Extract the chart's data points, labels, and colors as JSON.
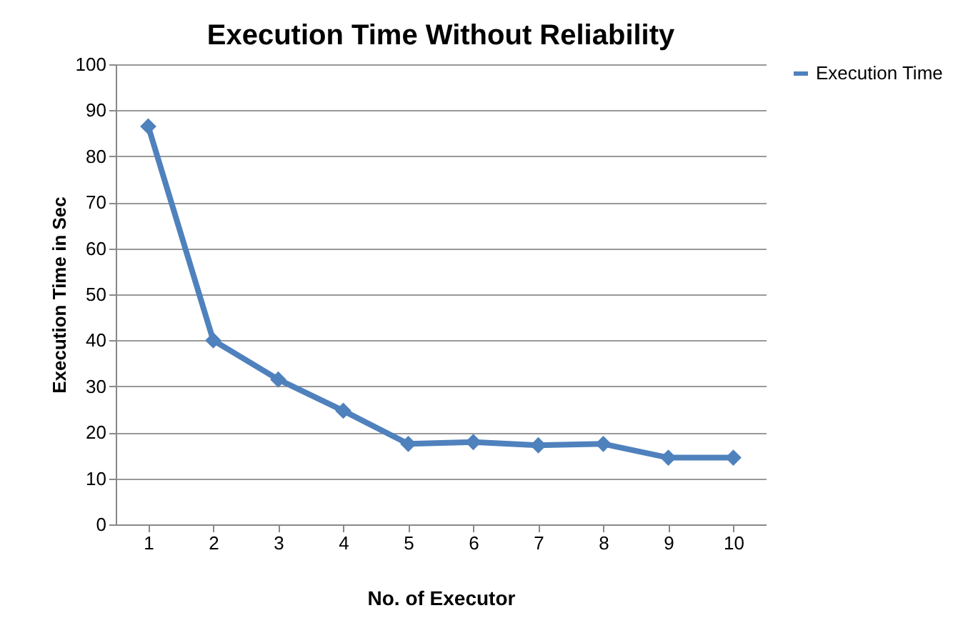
{
  "chart_data": {
    "type": "line",
    "title": "Execution Time Without Reliability",
    "xlabel": "No. of Executor",
    "ylabel": "Execution Time in Sec",
    "categories": [
      "1",
      "2",
      "3",
      "4",
      "5",
      "6",
      "7",
      "8",
      "9",
      "10"
    ],
    "series": [
      {
        "name": "Execution Time",
        "color": "#4f81bd",
        "values": [
          86.5,
          40,
          31.5,
          24.7,
          17.5,
          17.9,
          17.2,
          17.5,
          14.5,
          14.5
        ]
      }
    ],
    "ylim": [
      0,
      100
    ],
    "yticks": [
      0,
      10,
      20,
      30,
      40,
      50,
      60,
      70,
      80,
      90,
      100
    ],
    "grid": "y",
    "legend": "right",
    "marker": "diamond",
    "line_style": "solid"
  }
}
